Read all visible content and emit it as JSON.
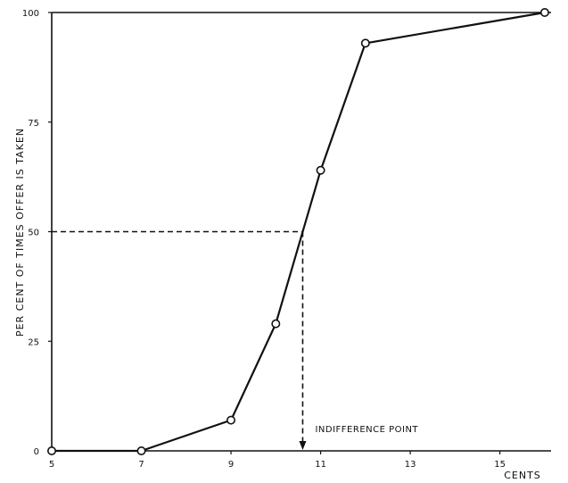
{
  "chart_data": {
    "type": "line",
    "title": "",
    "xlabel": "CENTS",
    "ylabel": "PER CENT OF TIMES OFFER IS TAKEN",
    "xlim": [
      5,
      16.4
    ],
    "ylim": [
      0,
      100
    ],
    "x_ticks": [
      5,
      7,
      9,
      11,
      13,
      15
    ],
    "y_ticks": [
      0,
      25,
      50,
      75,
      100
    ],
    "grid": false,
    "series": [
      {
        "x": [
          5,
          7,
          9,
          10,
          11,
          12,
          16
        ],
        "y": [
          0,
          0,
          7,
          29,
          64,
          93,
          100
        ]
      }
    ],
    "annotations": [
      {
        "text": "INDIFFERENCE POINT",
        "x": 10.6,
        "y": 50
      }
    ],
    "colors": {
      "line": "#111111",
      "marker_fill": "#ffffff"
    }
  }
}
